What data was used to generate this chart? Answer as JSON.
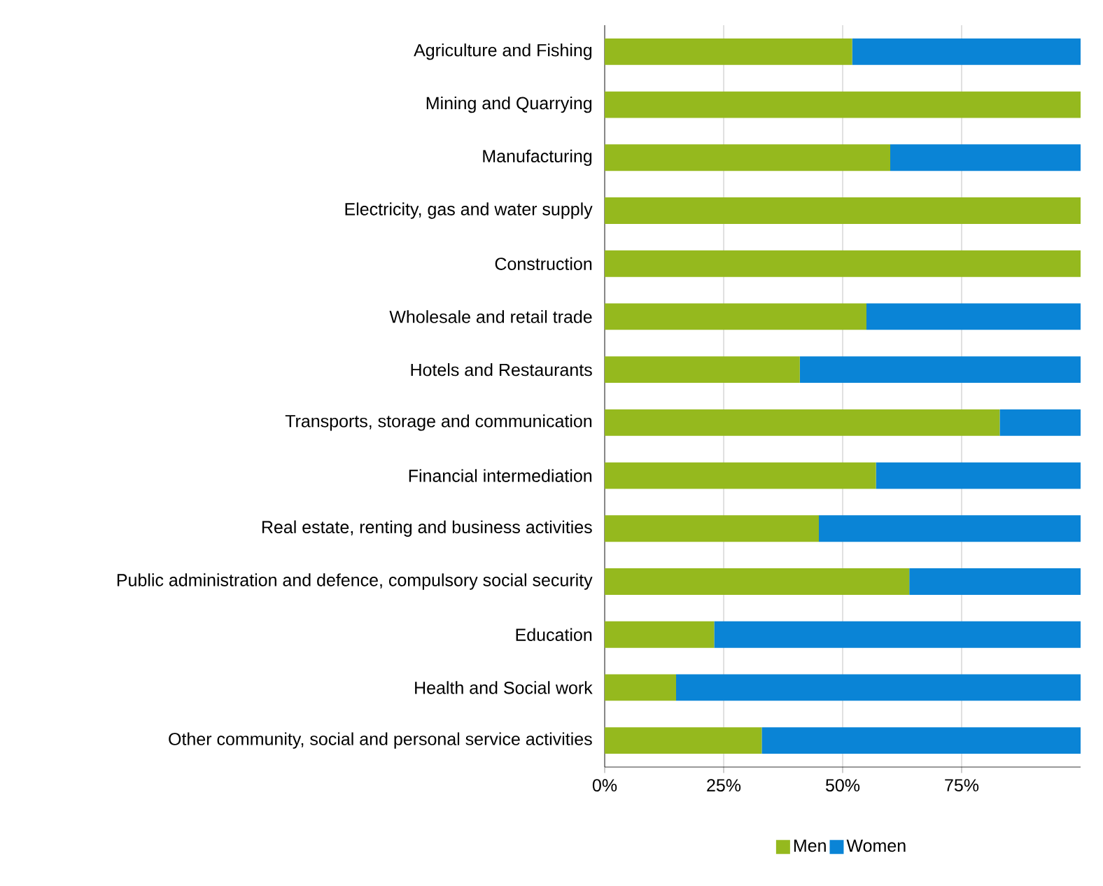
{
  "chart_data": {
    "type": "bar",
    "orientation": "horizontal",
    "stacked": true,
    "categories": [
      "Agriculture and Fishing",
      "Mining and Quarrying",
      "Manufacturing",
      "Electricity, gas and water supply",
      "Construction",
      "Wholesale and retail trade",
      "Hotels and Restaurants",
      "Transports, storage and communication",
      "Financial intermediation",
      "Real estate, renting and business activities",
      "Public administration and defence, compulsory social security",
      "Education",
      "Health and Social work",
      "Other community, social and personal service activities"
    ],
    "series": [
      {
        "name": "Men",
        "color": "#95b91e",
        "values": [
          52,
          100,
          60,
          100,
          100,
          55,
          41,
          83,
          57,
          45,
          64,
          23,
          15,
          33
        ]
      },
      {
        "name": "Women",
        "color": "#0a84d6",
        "values": [
          48,
          0,
          40,
          0,
          0,
          45,
          59,
          17,
          43,
          55,
          36,
          77,
          85,
          67
        ]
      }
    ],
    "xlim": [
      0,
      100
    ],
    "xticks": [
      {
        "value": 0,
        "label": "0%"
      },
      {
        "value": 25,
        "label": "25%"
      },
      {
        "value": 50,
        "label": "50%"
      },
      {
        "value": 75,
        "label": "75%"
      }
    ],
    "grid": "x",
    "legend": "bottom"
  }
}
